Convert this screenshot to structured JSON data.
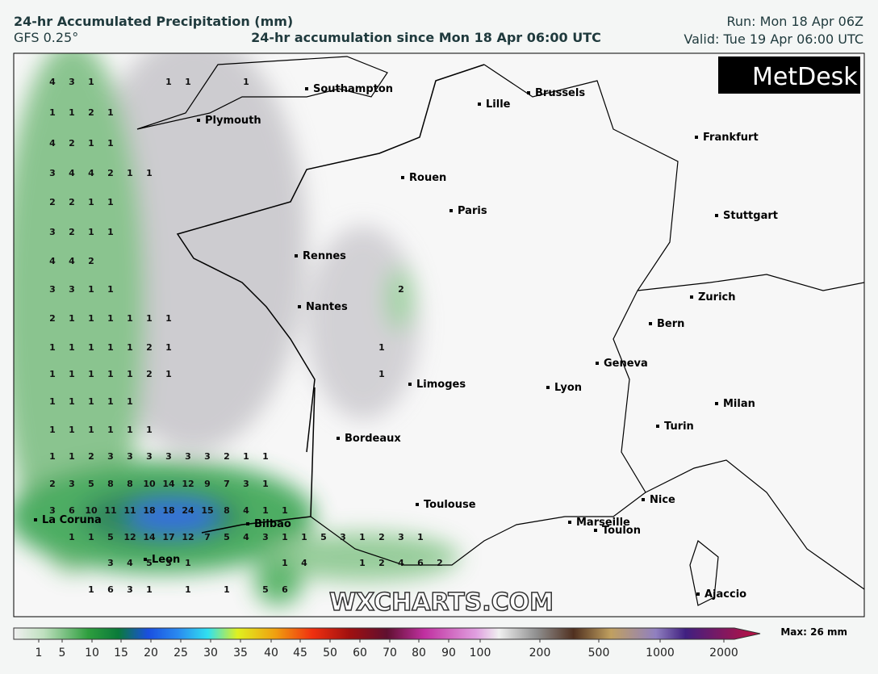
{
  "header": {
    "title": "24-hr Accumulated Precipitation (mm)",
    "model": "GFS 0.25°",
    "subtitle": "24-hr accumulation since Mon 18 Apr 06:00 UTC",
    "run": "Run: Mon 18 Apr 06Z",
    "valid": "Valid: Tue 19 Apr 06:00 UTC"
  },
  "logo": "MetDesk",
  "watermark": "WXCHARTS.COM",
  "cities": [
    "Southampton",
    "Plymouth",
    "Lille",
    "Brussels",
    "Frankfurt",
    "Rouen",
    "Paris",
    "Stuttgart",
    "Rennes",
    "Nantes",
    "Zurich",
    "Bern",
    "Limoges",
    "Lyon",
    "Geneva",
    "Milan",
    "Turin",
    "Bordeaux",
    "Toulouse",
    "Nice",
    "Marseille",
    "Toulon",
    "La Coruna",
    "Bilbao",
    "Leon",
    "Ajaccio"
  ],
  "precip_labels": [
    [
      4,
      3,
      1,
      1,
      1,
      1
    ],
    [
      1,
      1,
      2,
      1
    ],
    [
      4,
      2,
      1,
      1
    ],
    [
      3,
      4,
      4,
      2,
      1,
      1
    ],
    [
      2,
      2,
      1,
      1
    ],
    [
      3,
      2,
      1,
      1
    ],
    [
      4,
      4,
      2
    ],
    [
      3,
      3,
      1,
      1,
      2
    ],
    [
      2,
      1,
      1,
      1,
      1,
      1,
      1
    ],
    [
      1,
      1,
      1,
      1,
      1,
      2,
      1,
      1
    ],
    [
      1,
      1,
      1,
      1,
      1,
      2,
      1,
      1
    ],
    [
      1,
      1,
      1,
      1,
      1
    ],
    [
      1,
      1,
      1,
      1,
      1,
      1
    ],
    [
      1,
      1,
      2,
      3,
      3,
      3,
      3,
      3,
      3,
      2,
      1,
      1
    ],
    [
      2,
      3,
      5,
      8,
      8,
      10,
      14,
      12,
      9,
      7,
      3,
      1
    ],
    [
      3,
      6,
      10,
      11,
      11,
      18,
      18,
      24,
      15,
      8,
      4,
      1,
      1
    ],
    [
      1,
      1,
      5,
      12,
      14,
      17,
      12,
      7,
      5,
      4,
      3,
      1,
      1,
      5,
      3,
      1,
      2,
      3,
      1
    ],
    [
      3,
      4,
      5,
      3,
      1,
      1,
      4,
      1,
      2,
      4,
      6,
      2
    ],
    [
      1,
      6,
      3,
      1,
      1,
      1,
      5,
      6
    ]
  ],
  "colorbar": {
    "ticks": [
      1,
      5,
      10,
      15,
      20,
      25,
      30,
      35,
      40,
      45,
      50,
      60,
      70,
      80,
      90,
      100,
      200,
      500,
      1000,
      2000
    ],
    "max": "Max: 26 mm"
  }
}
